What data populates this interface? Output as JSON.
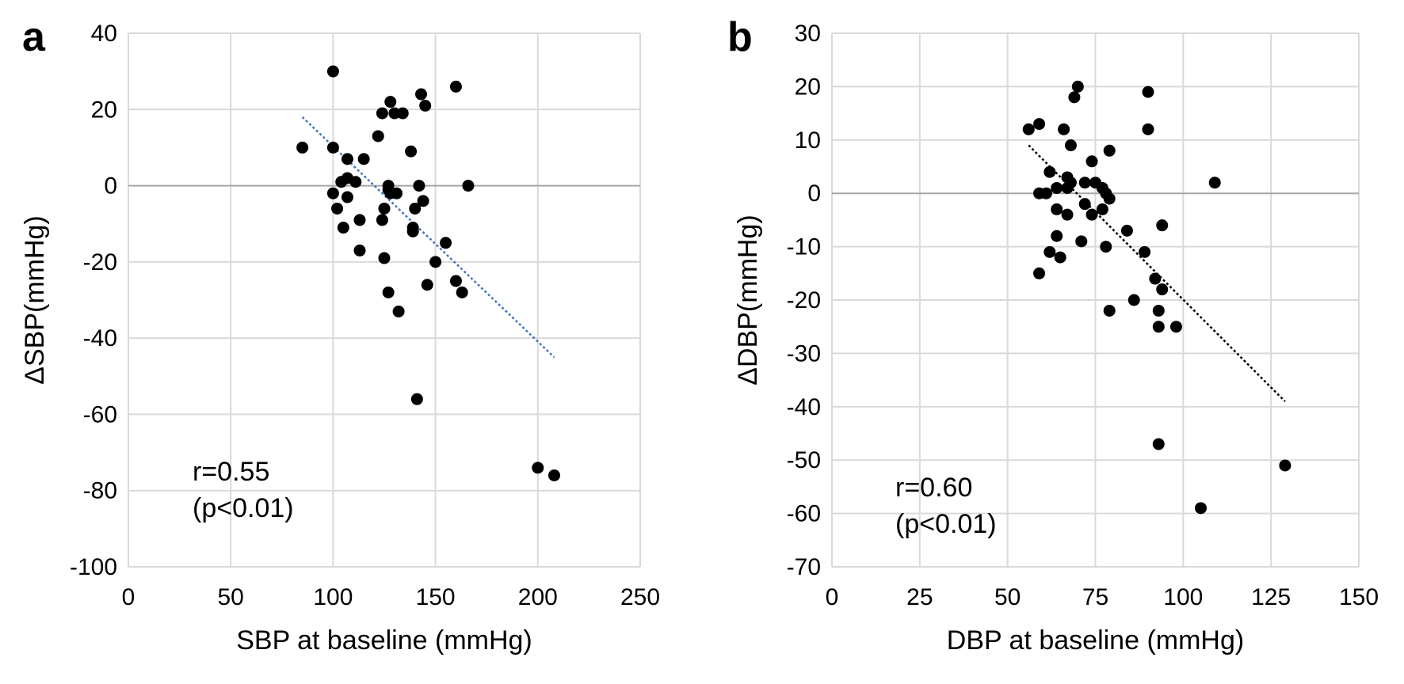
{
  "chart_data": [
    {
      "type": "scatter",
      "panel_label": "a",
      "xlabel": "SBP at baseline (mmHg)",
      "ylabel": "ΔSBP(mmHg)",
      "xlim": [
        0,
        250
      ],
      "ylim": [
        -100,
        40
      ],
      "xticks": [
        0,
        50,
        100,
        150,
        200,
        250
      ],
      "yticks": [
        -100,
        -80,
        -60,
        -40,
        -20,
        0,
        20,
        40
      ],
      "grid": true,
      "annotation": [
        "r=0.55",
        "(p<0.01)"
      ],
      "trendline": {
        "x": [
          85,
          208
        ],
        "y": [
          18,
          -45
        ],
        "color": "#4472c4",
        "style": "dotted"
      },
      "points": [
        [
          85,
          10
        ],
        [
          100,
          30
        ],
        [
          100,
          10
        ],
        [
          100,
          -2
        ],
        [
          102,
          -6
        ],
        [
          104,
          1
        ],
        [
          105,
          -11
        ],
        [
          107,
          7
        ],
        [
          107,
          2
        ],
        [
          107,
          -3
        ],
        [
          111,
          1
        ],
        [
          113,
          -9
        ],
        [
          113,
          -17
        ],
        [
          115,
          7
        ],
        [
          122,
          13
        ],
        [
          124,
          19
        ],
        [
          124,
          -9
        ],
        [
          125,
          -6
        ],
        [
          125,
          -19
        ],
        [
          127,
          0
        ],
        [
          127,
          -1
        ],
        [
          127,
          -28
        ],
        [
          128,
          22
        ],
        [
          128,
          -2
        ],
        [
          130,
          19
        ],
        [
          131,
          -2
        ],
        [
          132,
          -33
        ],
        [
          134,
          19
        ],
        [
          138,
          9
        ],
        [
          139,
          -11
        ],
        [
          139,
          -12
        ],
        [
          140,
          -6
        ],
        [
          141,
          -56
        ],
        [
          142,
          0
        ],
        [
          143,
          24
        ],
        [
          144,
          -4
        ],
        [
          145,
          21
        ],
        [
          146,
          -26
        ],
        [
          150,
          -20
        ],
        [
          155,
          -15
        ],
        [
          160,
          26
        ],
        [
          160,
          -25
        ],
        [
          163,
          -28
        ],
        [
          166,
          0
        ],
        [
          200,
          -74
        ],
        [
          208,
          -76
        ]
      ]
    },
    {
      "type": "scatter",
      "panel_label": "b",
      "xlabel": "DBP at baseline (mmHg)",
      "ylabel": "ΔDBP(mmHg)",
      "xlim": [
        0,
        150
      ],
      "ylim": [
        -70,
        30
      ],
      "xticks": [
        0,
        25,
        50,
        75,
        100,
        125,
        150
      ],
      "yticks": [
        -70,
        -60,
        -50,
        -40,
        -30,
        -20,
        -10,
        0,
        10,
        20,
        30
      ],
      "grid": true,
      "annotation": [
        "r=0.60",
        "(p<0.01)"
      ],
      "trendline": {
        "x": [
          56,
          129
        ],
        "y": [
          9,
          -39
        ],
        "color": "#000000",
        "style": "dotted"
      },
      "points": [
        [
          56,
          12
        ],
        [
          59,
          13
        ],
        [
          59,
          0
        ],
        [
          59,
          -15
        ],
        [
          61,
          0
        ],
        [
          62,
          4
        ],
        [
          62,
          -11
        ],
        [
          64,
          1
        ],
        [
          64,
          -3
        ],
        [
          64,
          -8
        ],
        [
          65,
          -12
        ],
        [
          66,
          12
        ],
        [
          67,
          3
        ],
        [
          67,
          -4
        ],
        [
          67,
          1
        ],
        [
          68,
          9
        ],
        [
          68,
          2
        ],
        [
          69,
          18
        ],
        [
          70,
          20
        ],
        [
          71,
          -9
        ],
        [
          72,
          2
        ],
        [
          72,
          -2
        ],
        [
          74,
          6
        ],
        [
          74,
          -4
        ],
        [
          75,
          2
        ],
        [
          77,
          1
        ],
        [
          77,
          -3
        ],
        [
          78,
          -10
        ],
        [
          78,
          0
        ],
        [
          79,
          8
        ],
        [
          79,
          -22
        ],
        [
          79,
          -1
        ],
        [
          84,
          -7
        ],
        [
          86,
          -20
        ],
        [
          89,
          -11
        ],
        [
          90,
          19
        ],
        [
          90,
          12
        ],
        [
          92,
          -16
        ],
        [
          93,
          -47
        ],
        [
          93,
          -22
        ],
        [
          93,
          -25
        ],
        [
          94,
          -6
        ],
        [
          94,
          -18
        ],
        [
          98,
          -25
        ],
        [
          105,
          -59
        ],
        [
          109,
          2
        ],
        [
          129,
          -51
        ]
      ]
    }
  ]
}
